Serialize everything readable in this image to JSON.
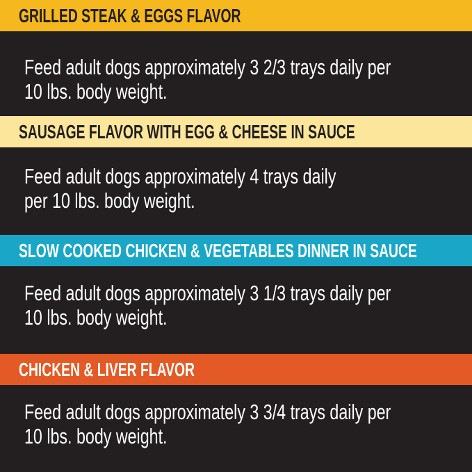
{
  "sections": [
    {
      "title": "GRILLED STEAK & EGGS FLAVOR",
      "color": "#f5b81f",
      "title_color": "#231f20",
      "lines": [
        "Feed adult dogs approximately 3 2/3 trays daily per",
        "10 lbs. body weight."
      ]
    },
    {
      "title": "SAUSAGE FLAVOR WITH EGG & CHEESE IN SAUCE",
      "color": "#fbe69b",
      "title_color": "#231f20",
      "lines": [
        "Feed adult dogs approximately 4 trays daily",
        "per 10 lbs. body weight."
      ]
    },
    {
      "title": "SLOW COOKED CHICKEN & VEGETABLES DINNER IN SAUCE",
      "color": "#1aa7c7",
      "title_color": "#ffffff",
      "lines": [
        "Feed adult dogs approximately 3 1/3 trays daily per",
        "10 lbs. body weight."
      ]
    },
    {
      "title": "CHICKEN & LIVER FLAVOR",
      "color": "#e35a26",
      "title_color": "#ffffff",
      "lines": [
        "Feed adult dogs approximately 3 3/4 trays daily per",
        "10 lbs. body weight."
      ]
    }
  ]
}
